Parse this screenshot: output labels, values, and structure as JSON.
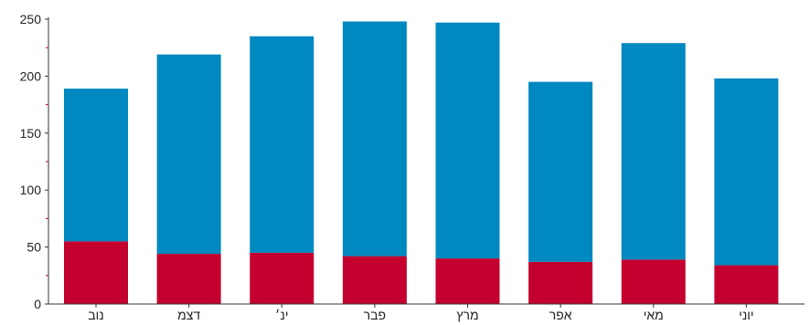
{
  "chart_data": {
    "type": "bar",
    "stacked": true,
    "categories": [
      "נוב",
      "דצמ",
      "ינ׳",
      "פבר",
      "מרץ",
      "אפר",
      "מאי",
      "יוני"
    ],
    "series": [
      {
        "values": [
          55,
          44,
          45,
          42,
          40,
          37,
          39,
          34
        ]
      },
      {
        "values": [
          134,
          175,
          190,
          206,
          207,
          158,
          190,
          164
        ]
      }
    ],
    "colors": [
      "#c4002e",
      "#0088c0"
    ],
    "ylim": [
      0,
      250
    ],
    "yticks": [
      0,
      50,
      100,
      150,
      200,
      250
    ],
    "grid": false,
    "title": "",
    "xlabel": "",
    "ylabel": ""
  }
}
